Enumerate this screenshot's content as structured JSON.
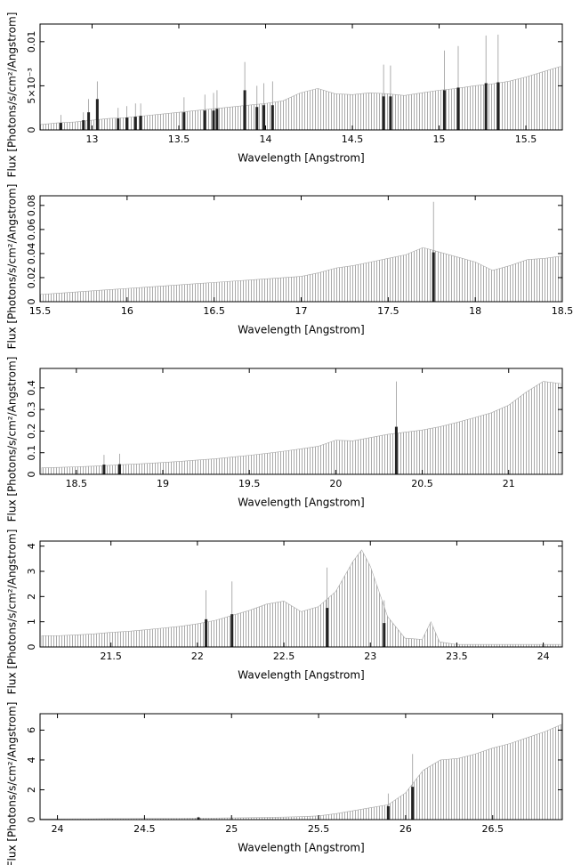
{
  "chart_data": [
    {
      "type": "area",
      "x_label": "Wavelength [Angstrom]",
      "y_label": "Flux [Photons/s/cm²/Angstrom]",
      "xlim": [
        12.7,
        15.71
      ],
      "ylim": [
        0,
        0.012
      ],
      "xticks": [
        13,
        13.5,
        14,
        14.5,
        15,
        15.5
      ],
      "yticks": [
        0,
        {
          "value": 0.005,
          "label": "5×10⁻³"
        },
        0.01
      ],
      "color": "#aaaaaa",
      "line_color": "#222222",
      "x": [
        12.7,
        12.8,
        12.9,
        13.0,
        13.1,
        13.2,
        13.3,
        13.4,
        13.5,
        13.6,
        13.7,
        13.8,
        13.9,
        14.0,
        14.1,
        14.2,
        14.3,
        14.4,
        14.5,
        14.6,
        14.7,
        14.8,
        14.9,
        15.0,
        15.1,
        15.2,
        15.3,
        15.4,
        15.5,
        15.6,
        15.7
      ],
      "values": [
        0.0006,
        0.0008,
        0.0009,
        0.0011,
        0.0013,
        0.0014,
        0.0016,
        0.0018,
        0.002,
        0.0022,
        0.0024,
        0.0026,
        0.0028,
        0.003,
        0.0033,
        0.0042,
        0.0047,
        0.0041,
        0.004,
        0.0042,
        0.0041,
        0.0039,
        0.0042,
        0.0045,
        0.0047,
        0.005,
        0.0052,
        0.0055,
        0.006,
        0.0066,
        0.0072
      ],
      "lines": {
        "x": [
          12.82,
          12.95,
          12.98,
          13.03,
          13.15,
          13.2,
          13.25,
          13.28,
          13.53,
          13.65,
          13.7,
          13.72,
          13.88,
          13.95,
          13.99,
          14.04,
          14.68,
          14.72,
          15.03,
          15.11,
          15.27,
          15.34
        ],
        "values": [
          0.0008,
          0.0011,
          0.002,
          0.0035,
          0.0013,
          0.0014,
          0.0015,
          0.0016,
          0.002,
          0.0022,
          0.0022,
          0.0024,
          0.0045,
          0.0026,
          0.0028,
          0.0028,
          0.0038,
          0.0038,
          0.0045,
          0.0048,
          0.0053,
          0.0054
        ],
        "errors": [
          0.0009,
          0.0009,
          0.0015,
          0.002,
          0.0012,
          0.0013,
          0.0015,
          0.0014,
          0.0017,
          0.0018,
          0.002,
          0.0021,
          0.0032,
          0.0024,
          0.0025,
          0.0027,
          0.0036,
          0.0035,
          0.0045,
          0.0047,
          0.0054,
          0.0054
        ]
      }
    },
    {
      "type": "area",
      "x_label": "Wavelength [Angstrom]",
      "y_label": "Flux [Photons/s/cm²/Angstrom]",
      "xlim": [
        15.5,
        18.5
      ],
      "ylim": [
        0,
        0.088
      ],
      "xticks": [
        15.5,
        16,
        16.5,
        17,
        17.5,
        18,
        18.5
      ],
      "yticks": [
        0,
        0.02,
        0.04,
        0.06,
        0.08
      ],
      "color": "#aaaaaa",
      "line_color": "#222222",
      "x": [
        15.5,
        15.6,
        15.7,
        15.8,
        15.9,
        16.0,
        16.1,
        16.2,
        16.3,
        16.4,
        16.5,
        16.6,
        16.7,
        16.8,
        16.9,
        17.0,
        17.1,
        17.2,
        17.3,
        17.4,
        17.5,
        17.6,
        17.7,
        17.8,
        17.9,
        18.0,
        18.1,
        18.2,
        18.3,
        18.4,
        18.5
      ],
      "values": [
        0.006,
        0.007,
        0.008,
        0.009,
        0.01,
        0.011,
        0.012,
        0.013,
        0.014,
        0.015,
        0.016,
        0.017,
        0.018,
        0.019,
        0.02,
        0.021,
        0.024,
        0.028,
        0.03,
        0.033,
        0.036,
        0.039,
        0.045,
        0.041,
        0.037,
        0.033,
        0.026,
        0.03,
        0.035,
        0.036,
        0.038
      ],
      "lines": {
        "x": [
          17.76
        ],
        "values": [
          0.041
        ],
        "errors": [
          0.042
        ]
      }
    },
    {
      "type": "area",
      "x_label": "Wavelength [Angstrom]",
      "y_label": "Flux [Photons/s/cm²/Angstrom]",
      "xlim": [
        18.29,
        21.31
      ],
      "ylim": [
        0,
        0.49
      ],
      "xticks": [
        18.5,
        19,
        19.5,
        20,
        20.5,
        21
      ],
      "yticks": [
        0,
        0.1,
        0.2,
        0.3,
        0.4
      ],
      "color": "#aaaaaa",
      "line_color": "#222222",
      "x": [
        18.3,
        18.4,
        18.5,
        18.6,
        18.7,
        18.8,
        18.9,
        19.0,
        19.1,
        19.2,
        19.3,
        19.4,
        19.5,
        19.6,
        19.7,
        19.8,
        19.9,
        20.0,
        20.1,
        20.2,
        20.3,
        20.4,
        20.5,
        20.6,
        20.7,
        20.8,
        20.9,
        21.0,
        21.1,
        21.2,
        21.3
      ],
      "values": [
        0.03,
        0.032,
        0.035,
        0.038,
        0.042,
        0.046,
        0.05,
        0.055,
        0.06,
        0.066,
        0.072,
        0.08,
        0.088,
        0.097,
        0.107,
        0.118,
        0.13,
        0.158,
        0.155,
        0.17,
        0.185,
        0.195,
        0.205,
        0.22,
        0.24,
        0.262,
        0.285,
        0.32,
        0.38,
        0.43,
        0.42
      ],
      "lines": {
        "x": [
          18.66,
          18.75,
          20.35
        ],
        "values": [
          0.045,
          0.047,
          0.22
        ],
        "errors": [
          0.045,
          0.048,
          0.21
        ]
      }
    },
    {
      "type": "area",
      "x_label": "Wavelength [Angstrom]",
      "y_label": "Flux [Photons/s/cm²/Angstrom]",
      "xlim": [
        21.09,
        24.11
      ],
      "ylim": [
        0,
        4.2
      ],
      "xticks": [
        21.5,
        22,
        22.5,
        23,
        23.5,
        24
      ],
      "yticks": [
        0,
        1,
        2,
        3,
        4
      ],
      "color": "#aaaaaa",
      "line_color": "#222222",
      "x": [
        21.1,
        21.2,
        21.3,
        21.4,
        21.5,
        21.6,
        21.7,
        21.8,
        21.9,
        22.0,
        22.1,
        22.2,
        22.3,
        22.4,
        22.5,
        22.6,
        22.7,
        22.8,
        22.9,
        22.95,
        23.0,
        23.1,
        23.2,
        23.3,
        23.35,
        23.4,
        23.5,
        23.6,
        23.7,
        23.8,
        23.9,
        24.0,
        24.1
      ],
      "values": [
        0.45,
        0.45,
        0.48,
        0.52,
        0.58,
        0.62,
        0.68,
        0.75,
        0.82,
        0.92,
        1.05,
        1.25,
        1.45,
        1.7,
        1.82,
        1.4,
        1.6,
        2.2,
        3.4,
        3.85,
        3.2,
        1.2,
        0.35,
        0.3,
        1.0,
        0.2,
        0.1,
        0.1,
        0.1,
        0.1,
        0.1,
        0.1,
        0.1
      ],
      "lines": {
        "x": [
          22.05,
          22.2,
          22.75,
          23.08
        ],
        "values": [
          1.1,
          1.3,
          1.55,
          0.95
        ],
        "errors": [
          1.15,
          1.3,
          1.6,
          0.9
        ]
      }
    },
    {
      "type": "area",
      "x_label": "Wavelength [Angstrom]",
      "y_label": "Flux [Photons/s/cm²/Angstrom]",
      "xlim": [
        23.9,
        26.9
      ],
      "ylim": [
        0,
        7.1
      ],
      "xticks": [
        24,
        24.5,
        25,
        25.5,
        26,
        26.5
      ],
      "yticks": [
        0,
        2,
        4,
        6
      ],
      "color": "#aaaaaa",
      "line_color": "#222222",
      "x": [
        23.9,
        24.0,
        24.1,
        24.2,
        24.3,
        24.4,
        24.5,
        24.6,
        24.7,
        24.8,
        24.9,
        25.0,
        25.1,
        25.2,
        25.3,
        25.4,
        25.5,
        25.6,
        25.7,
        25.8,
        25.9,
        26.0,
        26.1,
        26.2,
        26.3,
        26.4,
        26.5,
        26.6,
        26.7,
        26.8,
        26.9
      ],
      "values": [
        0.05,
        0.05,
        0.06,
        0.06,
        0.07,
        0.07,
        0.08,
        0.08,
        0.09,
        0.1,
        0.1,
        0.12,
        0.13,
        0.15,
        0.17,
        0.2,
        0.25,
        0.4,
        0.6,
        0.8,
        1.0,
        1.8,
        3.3,
        4.0,
        4.1,
        4.4,
        4.8,
        5.1,
        5.5,
        5.9,
        6.4
      ],
      "lines": {
        "x": [
          24.81,
          25.9,
          26.04
        ],
        "values": [
          0.15,
          0.9,
          2.2
        ],
        "errors": [
          0.05,
          0.85,
          2.2
        ]
      }
    }
  ]
}
